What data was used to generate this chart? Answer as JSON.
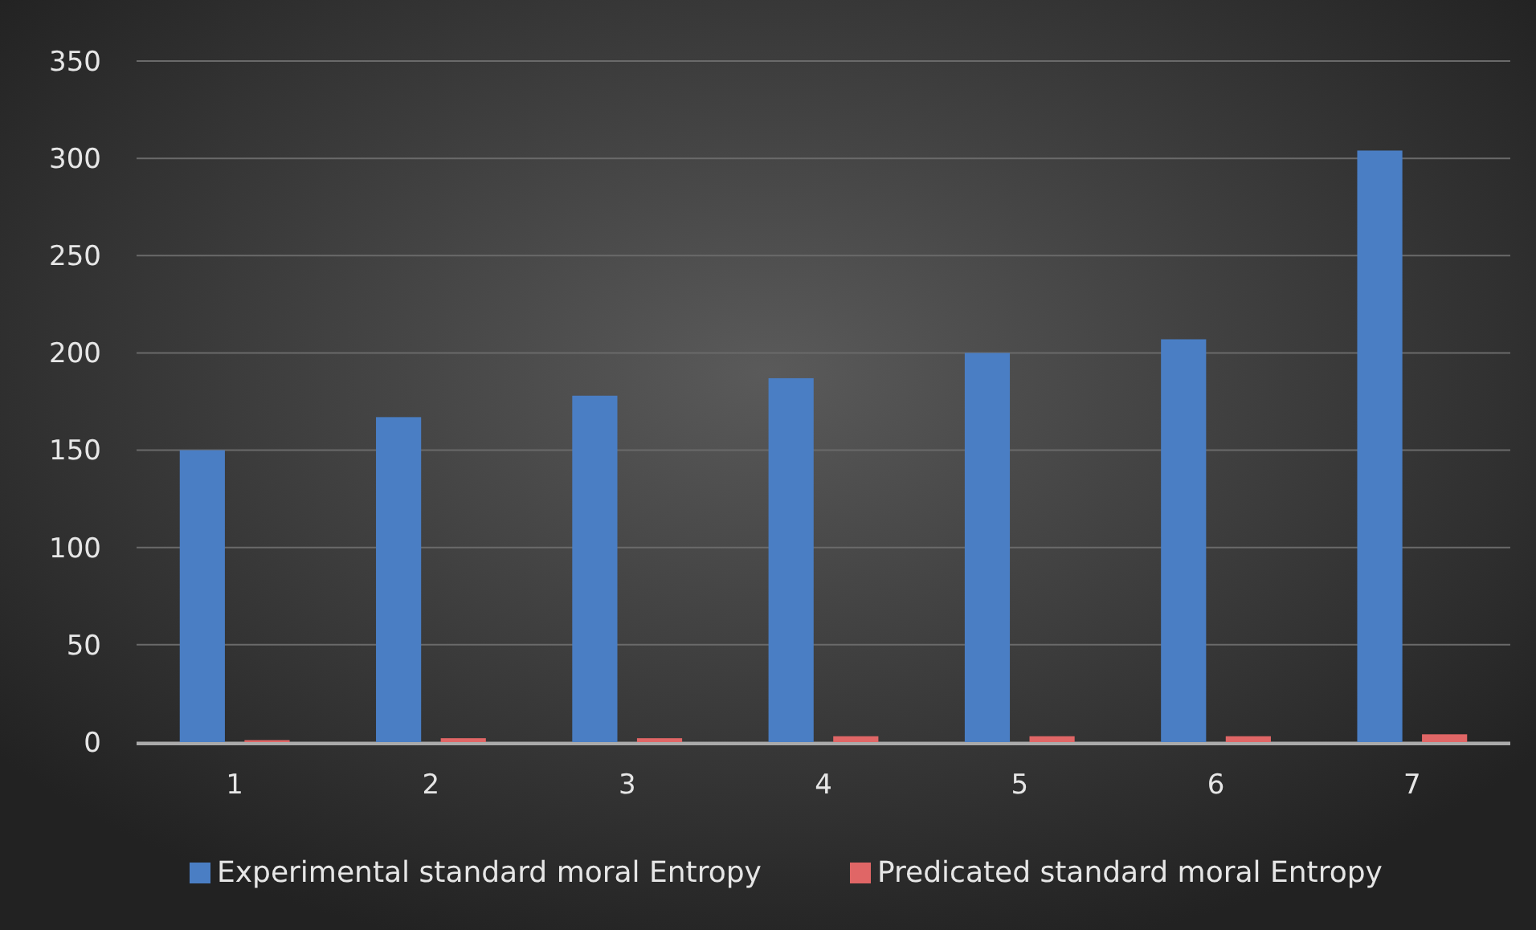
{
  "chart_data": {
    "type": "bar",
    "categories": [
      "1",
      "2",
      "3",
      "4",
      "5",
      "6",
      "7"
    ],
    "series": [
      {
        "name": "Experimental standard moral Entropy",
        "color": "#4a7ec4",
        "values": [
          150,
          167,
          178,
          187,
          200,
          207,
          304
        ]
      },
      {
        "name": "Predicated standard moral Entropy",
        "color": "#e06666",
        "values": [
          1,
          2,
          2,
          3,
          3,
          3,
          4
        ]
      }
    ],
    "ylim": [
      0,
      350
    ],
    "yticks": [
      0,
      50,
      100,
      150,
      200,
      250,
      300,
      350
    ],
    "grid": "y",
    "legend": "bottom"
  }
}
